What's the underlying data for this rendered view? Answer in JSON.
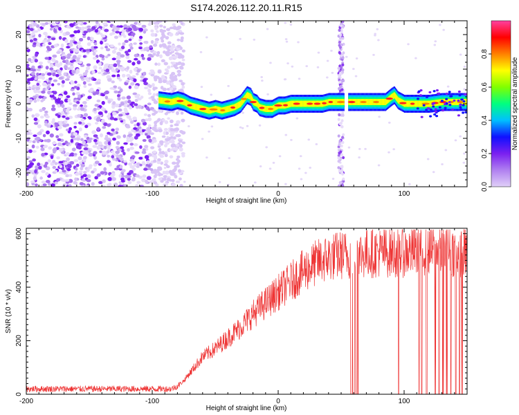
{
  "figure": {
    "title": "S174.2026.112.20.11.R15"
  },
  "chart_data": [
    {
      "type": "heatmap",
      "title": "S174.2026.112.20.11.R15",
      "xlabel": "Height of straight line (km)",
      "ylabel": "Frequency (Hz)",
      "xlim": [
        -200,
        150
      ],
      "ylim": [
        -24,
        24
      ],
      "x_ticks": [
        -200,
        -100,
        0,
        100
      ],
      "y_ticks": [
        -20,
        -10,
        0,
        10,
        20
      ],
      "colorbar": {
        "label": "Normalized spectral amplitude",
        "range": [
          0,
          1
        ],
        "ticks": [
          "0.0",
          "0.2",
          "0.4",
          "0.6",
          "0.8"
        ],
        "tick_values": [
          0,
          0.2,
          0.4,
          0.6,
          0.8
        ],
        "colors": [
          "#e0d0f8",
          "#b080f0",
          "#7a20f0",
          "#1010ff",
          "#00c0ff",
          "#00ff80",
          "#80ff00",
          "#ffff00",
          "#ff8000",
          "#ff0000",
          "#ff40a0"
        ]
      },
      "noise_region": {
        "x_range": [
          -200,
          -85
        ],
        "y_range": [
          -24,
          24
        ]
      },
      "spike_column": {
        "x": 50,
        "y_range": [
          -24,
          24
        ]
      },
      "gap": {
        "x_range": [
          52,
          55
        ]
      },
      "ridge": [
        [
          -95,
          1.0
        ],
        [
          -85,
          0.5
        ],
        [
          -80,
          1.0
        ],
        [
          -75,
          0.5
        ],
        [
          -70,
          -0.5
        ],
        [
          -65,
          -1.0
        ],
        [
          -60,
          -1.5
        ],
        [
          -55,
          -2.0
        ],
        [
          -50,
          -1.5
        ],
        [
          -45,
          -2.0
        ],
        [
          -40,
          -1.5
        ],
        [
          -35,
          -1.0
        ],
        [
          -30,
          0.0
        ],
        [
          -27,
          1.5
        ],
        [
          -25,
          2.5
        ],
        [
          -22,
          2.0
        ],
        [
          -20,
          0.5
        ],
        [
          -17,
          0.0
        ],
        [
          -15,
          -1.0
        ],
        [
          -10,
          -1.5
        ],
        [
          -5,
          -1.5
        ],
        [
          0,
          -0.5
        ],
        [
          5,
          -0.5
        ],
        [
          10,
          0.0
        ],
        [
          15,
          0.0
        ],
        [
          20,
          0.0
        ],
        [
          25,
          0.0
        ],
        [
          30,
          0.0
        ],
        [
          35,
          0.0
        ],
        [
          40,
          0.5
        ],
        [
          45,
          0.5
        ],
        [
          50,
          0.5
        ],
        [
          55,
          0.5
        ],
        [
          60,
          0.5
        ],
        [
          65,
          0.5
        ],
        [
          70,
          0.5
        ],
        [
          75,
          0.5
        ],
        [
          80,
          0.5
        ],
        [
          85,
          0.5
        ],
        [
          90,
          2.0
        ],
        [
          92,
          2.5
        ],
        [
          95,
          1.0
        ],
        [
          100,
          0.0
        ],
        [
          110,
          0.0
        ],
        [
          120,
          0.0
        ],
        [
          130,
          0.5
        ],
        [
          140,
          0.5
        ],
        [
          150,
          0.5
        ]
      ]
    },
    {
      "type": "line",
      "xlabel": "Height of straight line (km)",
      "ylabel": "SNR (10 * v/v)",
      "xlim": [
        -200,
        150
      ],
      "ylim": [
        0,
        620
      ],
      "x_ticks": [
        -200,
        -100,
        0,
        100
      ],
      "y_ticks": [
        0,
        200,
        400,
        600
      ],
      "color": "#ee3333",
      "trend": [
        [
          -200,
          20
        ],
        [
          -100,
          20
        ],
        [
          -85,
          20
        ],
        [
          -80,
          30
        ],
        [
          -75,
          50
        ],
        [
          -70,
          80
        ],
        [
          -65,
          110
        ],
        [
          -60,
          140
        ],
        [
          -50,
          170
        ],
        [
          -40,
          210
        ],
        [
          -30,
          250
        ],
        [
          -20,
          300
        ],
        [
          -10,
          340
        ],
        [
          0,
          380
        ],
        [
          10,
          420
        ],
        [
          20,
          460
        ],
        [
          30,
          490
        ],
        [
          40,
          510
        ],
        [
          50,
          520
        ],
        [
          60,
          520
        ],
        [
          80,
          530
        ],
        [
          100,
          530
        ],
        [
          120,
          540
        ],
        [
          150,
          530
        ]
      ],
      "dropouts": [
        58,
        59,
        60,
        61,
        62,
        63,
        64,
        96,
        112,
        114,
        118,
        125,
        128,
        131,
        134,
        137,
        141,
        144,
        146
      ]
    }
  ]
}
